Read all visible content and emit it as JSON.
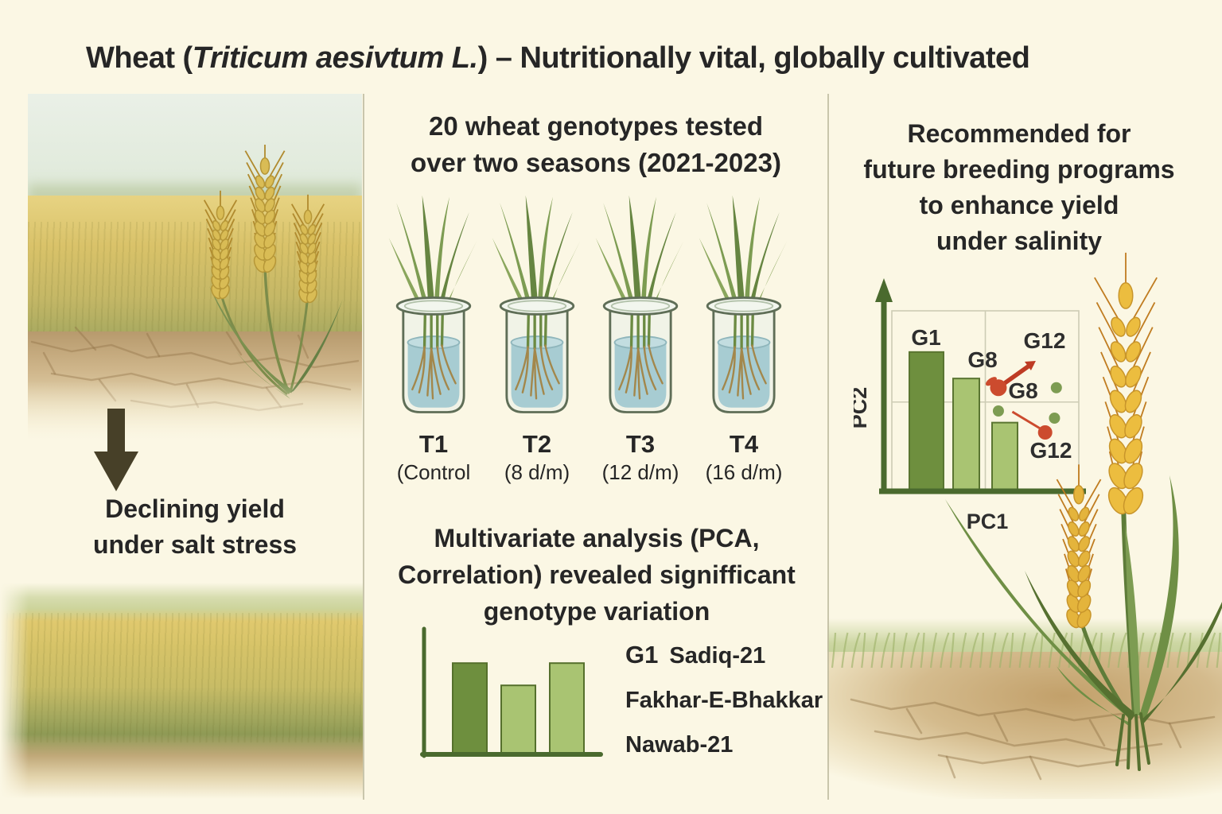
{
  "colors": {
    "background": "#FBF7E4",
    "ink": "#262626",
    "bar_dark_green": "#6E8F3E",
    "bar_light_green": "#A9C472",
    "axis_green": "#4A6A2E",
    "red_marker": "#C2402A",
    "water_blue": "#A7CCD2",
    "wheat_gold": "#E8B93E",
    "soil_tan": "#C6A26B"
  },
  "title": {
    "prefix": "Wheat (",
    "species": "Triticum aesivtum L.",
    "suffix": ") – Nutritionally vital, globally cultivated"
  },
  "left_panel": {
    "arrow_icon": "down-arrow",
    "caption_lines": [
      "Declining yield",
      "under salt stress"
    ]
  },
  "middle_panel": {
    "heading_lines": [
      "20 wheat genotypes tested",
      "over two seasons (2021-2023)"
    ],
    "treatments": [
      {
        "label": "T1",
        "sublabel": "(Control"
      },
      {
        "label": "T2",
        "sublabel": "(8 d/m)"
      },
      {
        "label": "T3",
        "sublabel": "(12 d/m)"
      },
      {
        "label": "T4",
        "sublabel": "(16 d/m)"
      }
    ],
    "analysis_lines": [
      "Multivariate analysis (PCA,",
      "Correlation) revealed signifficant",
      "genotype variation"
    ],
    "genotypes": {
      "code": "G1",
      "names": [
        "Sadiq-21",
        "Fakhar-E-Bhakkar",
        "Nawab-21"
      ]
    }
  },
  "right_panel": {
    "heading_lines": [
      "Recommended for",
      "future breeding programs",
      "to enhance yield",
      "under salinity"
    ]
  },
  "chart_data": [
    {
      "type": "bar",
      "title": "",
      "xlabel": "",
      "ylabel": "",
      "categories": [
        "",
        "",
        ""
      ],
      "values": [
        0.82,
        0.62,
        0.82
      ],
      "colors": [
        "#6E8F3E",
        "#A9C472",
        "#A9C472"
      ],
      "ylim": [
        0,
        1
      ],
      "grid": false,
      "legend": "none"
    },
    {
      "type": "scatter",
      "title": "",
      "xlabel": "PC1",
      "ylabel": "PC2",
      "xlim": [
        0,
        1
      ],
      "ylim": [
        0,
        1
      ],
      "grid": true,
      "legend": "none",
      "bars": [
        {
          "label": "G1",
          "rel_height": 0.78,
          "color": "#6E8F3E"
        },
        {
          "label": "",
          "rel_height": 0.63,
          "color": "#A9C472"
        },
        {
          "label": "",
          "rel_height": 0.38,
          "color": "#A9C472"
        }
      ],
      "points": [
        {
          "label": "G8",
          "x": 0.57,
          "y": 0.57,
          "marker": "red-blob"
        },
        {
          "label": "G12",
          "x": 0.77,
          "y": 0.72,
          "marker": "red-arrow-head"
        },
        {
          "label": "G8",
          "x": 0.67,
          "y": 0.48,
          "marker": "label-only"
        },
        {
          "label": "G12",
          "x": 0.82,
          "y": 0.32,
          "marker": "red-dot"
        },
        {
          "label": "",
          "x": 0.57,
          "y": 0.44,
          "marker": "green-dot"
        },
        {
          "label": "",
          "x": 0.88,
          "y": 0.57,
          "marker": "green-dot"
        },
        {
          "label": "",
          "x": 0.87,
          "y": 0.4,
          "marker": "green-dot"
        }
      ],
      "annotations": [
        "red arrow from first G8 blob toward upper-right G12",
        "red line from second G8 toward lower-right G12 dot"
      ]
    }
  ]
}
